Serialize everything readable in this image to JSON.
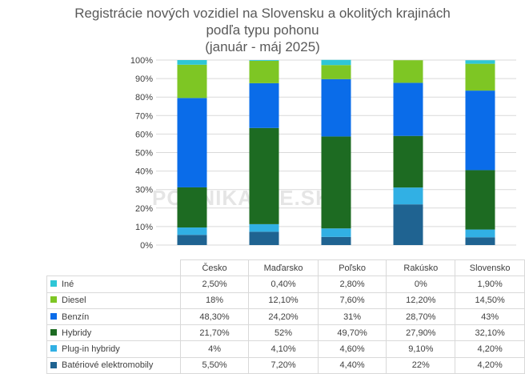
{
  "title_lines": [
    "Registrácie nových vozidiel na Slovensku a okolitých krajinách",
    "podľa typu pohonu",
    "(január - máj 2025)"
  ],
  "watermark": "PODNIKAJTE.SK",
  "chart_data": {
    "type": "bar",
    "stacked": "percent",
    "categories": [
      "Česko",
      "Maďarsko",
      "Poľsko",
      "Rakúsko",
      "Slovensko"
    ],
    "ylim": [
      0,
      100
    ],
    "yticks": [
      "0%",
      "10%",
      "20%",
      "30%",
      "40%",
      "50%",
      "60%",
      "70%",
      "80%",
      "90%",
      "100%"
    ],
    "grid": true,
    "series": [
      {
        "name": "Batériové elektromobily",
        "color": "#1f6391",
        "values": [
          5.5,
          7.2,
          4.4,
          22,
          4.2
        ],
        "labels": [
          "5,50%",
          "7,20%",
          "4,40%",
          "22%",
          "4,20%"
        ]
      },
      {
        "name": "Plug-in hybridy",
        "color": "#31b0e4",
        "values": [
          4,
          4.1,
          4.6,
          9.1,
          4.2
        ],
        "labels": [
          "4%",
          "4,10%",
          "4,60%",
          "9,10%",
          "4,20%"
        ]
      },
      {
        "name": "Hybridy",
        "color": "#1d6b22",
        "values": [
          21.7,
          52,
          49.7,
          27.9,
          32.1
        ],
        "labels": [
          "21,70%",
          "52%",
          "49,70%",
          "27,90%",
          "32,10%"
        ]
      },
      {
        "name": "Benzín",
        "color": "#0a6ce9",
        "values": [
          48.3,
          24.2,
          31,
          28.7,
          43
        ],
        "labels": [
          "48,30%",
          "24,20%",
          "31%",
          "28,70%",
          "43%"
        ]
      },
      {
        "name": "Diesel",
        "color": "#7ec624",
        "values": [
          18,
          12.1,
          7.6,
          12.2,
          14.5
        ],
        "labels": [
          "18%",
          "12,10%",
          "7,60%",
          "12,20%",
          "14,50%"
        ]
      },
      {
        "name": "Iné",
        "color": "#2ec6d6",
        "values": [
          2.5,
          0.4,
          2.8,
          0,
          1.9
        ],
        "labels": [
          "2,50%",
          "0,40%",
          "2,80%",
          "0%",
          "1,90%"
        ]
      }
    ]
  }
}
